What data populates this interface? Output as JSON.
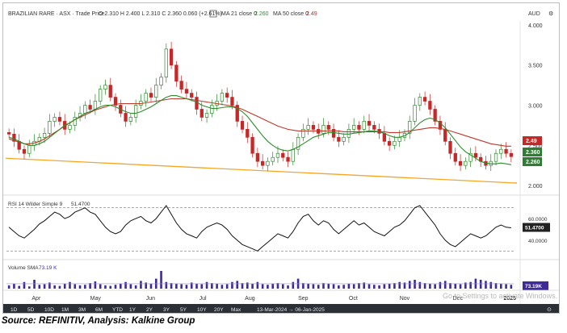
{
  "header": {
    "symbol": "BRAZILIAN RARE · ASX · Trade Price",
    "ohlc": "O 2.310 H 2.400 L 2.310 C 2.360 0.060 (+2.61%)",
    "ma21": "MA 21 close 0",
    "ma21_value": "2.260",
    "ma50": "MA 50 close 0",
    "ma50_value": "2.49",
    "currency": "AUD"
  },
  "price_axis": {
    "ticks": [
      "4.000",
      "3.500",
      "3.000",
      "2.500",
      "2.000"
    ],
    "badges": [
      {
        "text": "2.49",
        "color": "#c62828"
      },
      {
        "text": "2.360",
        "color": "#2e7d32"
      },
      {
        "text": "2.260",
        "color": "#2e7d32"
      }
    ]
  },
  "rsi": {
    "label": "RSI 14 Wilder Simple 9",
    "value": "51.4700",
    "ticks": [
      "60.0000",
      "40.0000"
    ],
    "badge": "51.4700"
  },
  "volume": {
    "label": "Volume SMA",
    "value": "73.19 K",
    "badge": "73.19K"
  },
  "months": [
    "Apr",
    "May",
    "Jun",
    "Jul",
    "Aug",
    "Sep",
    "Oct",
    "Nov",
    "Dec",
    "2025"
  ],
  "ranges": [
    "1D",
    "5D",
    "10D",
    "1M",
    "3M",
    "6M",
    "YTD",
    "1Y",
    "2Y",
    "3Y",
    "5Y",
    "10Y",
    "20Y",
    "Max"
  ],
  "date_range": "13-Mar-2024 → 06-Jan-2025",
  "watermark": "Go to Settings to activate Windows.",
  "source": "Source: REFINITIV, Analysis: Kalkine Group",
  "colors": {
    "up": "#2e8b2e",
    "down": "#c62828",
    "ma21": "#2e8b2e",
    "ma50": "#c0392b",
    "trendline": "#f5a623",
    "volume": "#3f2a9a",
    "rsi": "#111111",
    "axis_text": "#333333"
  },
  "chart_data": {
    "type": "candlestick",
    "title": "BRAZILIAN RARE · ASX · Trade Price",
    "y_axis": {
      "ticks": [
        4.0,
        3.5,
        3.0,
        2.5,
        2.0
      ],
      "range": [
        1.9,
        4.05
      ]
    },
    "close": [
      2.64,
      2.55,
      2.45,
      2.4,
      2.5,
      2.55,
      2.6,
      2.65,
      2.8,
      2.85,
      2.8,
      2.7,
      2.75,
      2.85,
      2.9,
      3.0,
      2.95,
      3.05,
      3.2,
      3.25,
      3.1,
      3.0,
      2.9,
      2.8,
      2.85,
      3.0,
      3.05,
      3.15,
      3.1,
      3.25,
      3.35,
      3.7,
      3.5,
      3.3,
      3.2,
      3.15,
      3.1,
      2.95,
      2.85,
      2.9,
      3.0,
      3.05,
      3.15,
      3.1,
      3.0,
      2.8,
      2.7,
      2.6,
      2.4,
      2.3,
      2.25,
      2.3,
      2.35,
      2.4,
      2.35,
      2.3,
      2.45,
      2.6,
      2.7,
      2.75,
      2.7,
      2.65,
      2.75,
      2.7,
      2.6,
      2.55,
      2.6,
      2.7,
      2.75,
      2.7,
      2.8,
      2.75,
      2.7,
      2.65,
      2.55,
      2.5,
      2.55,
      2.6,
      2.65,
      2.8,
      3.0,
      3.1,
      3.05,
      2.95,
      2.8,
      2.7,
      2.55,
      2.4,
      2.3,
      2.25,
      2.3,
      2.4,
      2.35,
      2.3,
      2.25,
      2.3,
      2.4,
      2.45,
      2.4,
      2.36
    ],
    "ma21": [
      2.6,
      2.58,
      2.55,
      2.52,
      2.5,
      2.5,
      2.52,
      2.55,
      2.6,
      2.65,
      2.7,
      2.75,
      2.78,
      2.82,
      2.86,
      2.9,
      2.92,
      2.95,
      2.98,
      3.0,
      3.0,
      2.98,
      2.95,
      2.92,
      2.9,
      2.9,
      2.92,
      2.95,
      2.98,
      3.02,
      3.06,
      3.1,
      3.12,
      3.12,
      3.1,
      3.08,
      3.06,
      3.04,
      3.0,
      2.98,
      2.96,
      2.96,
      2.97,
      2.98,
      2.98,
      2.96,
      2.92,
      2.86,
      2.78,
      2.7,
      2.62,
      2.55,
      2.5,
      2.46,
      2.44,
      2.43,
      2.45,
      2.48,
      2.52,
      2.56,
      2.6,
      2.62,
      2.64,
      2.66,
      2.66,
      2.65,
      2.64,
      2.64,
      2.65,
      2.66,
      2.67,
      2.68,
      2.68,
      2.67,
      2.65,
      2.62,
      2.6,
      2.6,
      2.62,
      2.66,
      2.72,
      2.78,
      2.82,
      2.84,
      2.82,
      2.78,
      2.72,
      2.64,
      2.56,
      2.48,
      2.42,
      2.38,
      2.34,
      2.3,
      2.28,
      2.27,
      2.27,
      2.28,
      2.27,
      2.26
    ],
    "ma50": [
      2.58,
      2.56,
      2.54,
      2.52,
      2.52,
      2.53,
      2.55,
      2.58,
      2.62,
      2.66,
      2.7,
      2.74,
      2.78,
      2.82,
      2.85,
      2.88,
      2.91,
      2.94,
      2.96,
      2.98,
      3.0,
      3.01,
      3.02,
      3.02,
      3.02,
      3.02,
      3.02,
      3.03,
      3.04,
      3.05,
      3.06,
      3.07,
      3.08,
      3.08,
      3.08,
      3.08,
      3.07,
      3.06,
      3.05,
      3.04,
      3.03,
      3.02,
      3.01,
      3.0,
      2.99,
      2.97,
      2.95,
      2.92,
      2.89,
      2.86,
      2.83,
      2.8,
      2.77,
      2.74,
      2.72,
      2.7,
      2.69,
      2.68,
      2.68,
      2.68,
      2.68,
      2.68,
      2.68,
      2.68,
      2.68,
      2.68,
      2.67,
      2.67,
      2.67,
      2.67,
      2.67,
      2.67,
      2.67,
      2.67,
      2.67,
      2.66,
      2.66,
      2.66,
      2.67,
      2.68,
      2.69,
      2.7,
      2.71,
      2.72,
      2.72,
      2.71,
      2.7,
      2.68,
      2.66,
      2.64,
      2.62,
      2.6,
      2.58,
      2.56,
      2.54,
      2.52,
      2.51,
      2.5,
      2.49,
      2.49
    ],
    "trendline": [
      [
        0,
        2.42
      ],
      [
        99,
        2.03
      ]
    ],
    "rsi_values": [
      52,
      48,
      44,
      42,
      46,
      50,
      55,
      58,
      62,
      66,
      64,
      60,
      62,
      66,
      68,
      70,
      66,
      64,
      58,
      52,
      48,
      46,
      48,
      54,
      58,
      60,
      62,
      58,
      56,
      60,
      66,
      72,
      64,
      56,
      50,
      46,
      44,
      42,
      48,
      52,
      54,
      56,
      54,
      50,
      44,
      40,
      36,
      34,
      32,
      30,
      34,
      38,
      42,
      46,
      44,
      42,
      48,
      56,
      62,
      64,
      58,
      54,
      58,
      56,
      50,
      46,
      50,
      54,
      58,
      54,
      56,
      52,
      48,
      46,
      44,
      48,
      52,
      54,
      58,
      64,
      70,
      72,
      66,
      60,
      54,
      46,
      40,
      36,
      34,
      38,
      42,
      46,
      44,
      42,
      44,
      48,
      52,
      54,
      52,
      51.47
    ],
    "volume_values": [
      30,
      45,
      25,
      60,
      20,
      80,
      35,
      40,
      55,
      30,
      25,
      45,
      60,
      40,
      30,
      35,
      50,
      65,
      40,
      30,
      25,
      35,
      45,
      60,
      40,
      30,
      70,
      55,
      45,
      90,
      160,
      60,
      50,
      45,
      40,
      35,
      55,
      45,
      40,
      60,
      50,
      45,
      35,
      40,
      60,
      70,
      50,
      55,
      45,
      60,
      40,
      35,
      45,
      50,
      40,
      30,
      60,
      90,
      50,
      45,
      40,
      35,
      50,
      45,
      40,
      30,
      35,
      45,
      40,
      50,
      55,
      40,
      35,
      30,
      40,
      45,
      50,
      60,
      55,
      70,
      80,
      60,
      50,
      45,
      40,
      60,
      70,
      50,
      45,
      40,
      55,
      60,
      90,
      80,
      70,
      60,
      50,
      45,
      40,
      35
    ],
    "volume_sma": 73.19
  }
}
